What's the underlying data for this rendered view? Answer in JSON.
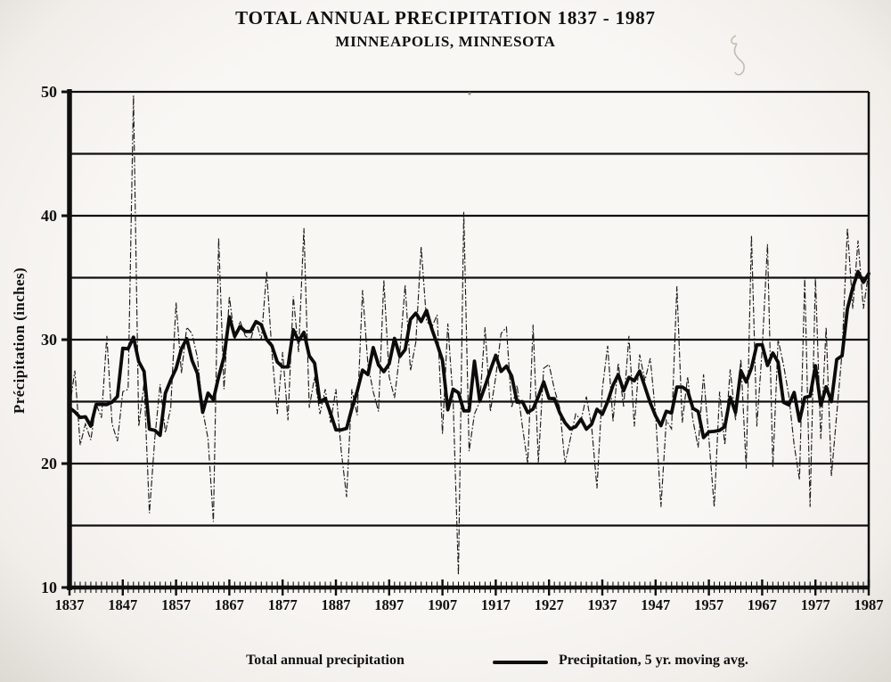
{
  "page": {
    "kind": "scanned climate chart"
  },
  "chart_data": {
    "type": "line",
    "title": "TOTAL ANNUAL PRECIPITATION 1837 - 1987",
    "subtitle": "MINNEAPOLIS, MINNESOTA",
    "ylabel": "Précipitation (inches)",
    "xlabel": "",
    "x_start": 1837,
    "x_end": 1987,
    "ylim": [
      10,
      50
    ],
    "y_gridlines": [
      15,
      20,
      25,
      30,
      35,
      40,
      45,
      50
    ],
    "y_labeled_ticks": [
      10,
      20,
      30,
      40,
      50
    ],
    "x_tick_labels": [
      "1837",
      "1847",
      "1857",
      "1867",
      "1877",
      "1887",
      "1897",
      "1907",
      "1917",
      "1927",
      "1937",
      "1947",
      "1957",
      "1967",
      "1977",
      "1987"
    ],
    "grid": "horizontal-only",
    "legend_position": "bottom",
    "series": [
      {
        "name": "Total annual precipitation",
        "style": "thin-dash-dot",
        "values": [
          24.5,
          27.5,
          21.5,
          23.2,
          21.9,
          24.8,
          23.7,
          30.3,
          23.2,
          21.8,
          25.8,
          26.0,
          49.7,
          23.0,
          26.5,
          16.0,
          22.0,
          26.4,
          22.5,
          24.5,
          33.0,
          27.3,
          31.0,
          30.5,
          28.6,
          24.3,
          22.0,
          15.3,
          38.2,
          26.0,
          33.5,
          30.0,
          31.5,
          30.3,
          30.0,
          31.5,
          30.0,
          35.5,
          29.0,
          24.0,
          29.0,
          23.5,
          33.5,
          29.0,
          39.0,
          24.5,
          27.0,
          24.0,
          26.0,
          23.3,
          26.0,
          21.0,
          17.3,
          26.0,
          23.9,
          34.0,
          28.0,
          25.8,
          24.2,
          34.8,
          27.0,
          25.3,
          29.0,
          34.4,
          27.5,
          29.8,
          37.5,
          31.5,
          31.0,
          32.0,
          22.4,
          31.3,
          25.0,
          11.0,
          40.3,
          21.0,
          24.0,
          25.0,
          31.0,
          24.2,
          27.0,
          30.5,
          31.0,
          24.5,
          26.3,
          23.0,
          20.0,
          31.2,
          20.1,
          27.7,
          28.0,
          26.0,
          24.5,
          20.0,
          22.0,
          24.0,
          23.5,
          25.4,
          23.0,
          18.0,
          26.0,
          29.5,
          23.4,
          28.1,
          24.6,
          30.3,
          23.0,
          28.8,
          26.7,
          28.5,
          24.0,
          16.5,
          23.5,
          22.8,
          34.3,
          23.3,
          27.0,
          23.5,
          21.3,
          27.2,
          22.0,
          16.5,
          25.8,
          21.5,
          27.6,
          23.5,
          28.4,
          19.6,
          38.4,
          23.0,
          29.2,
          37.7,
          19.7,
          30.0,
          28.0,
          25.5,
          21.5,
          18.7,
          35.0,
          16.5,
          35.0,
          22.0,
          31.0,
          19.0,
          24.0,
          29.0,
          39.0,
          32.5,
          38.0,
          32.5,
          35.5
        ]
      },
      {
        "name": "Precipitation, 5 yr. moving avg.",
        "style": "thick-solid",
        "derived": "centered 5-year moving average of the annual series"
      }
    ]
  },
  "legend": {
    "annual_label": "Total annual precipitation",
    "avg_label": "Precipitation, 5 yr. moving avg."
  },
  "colors": {
    "ink": "#0f0f0f",
    "paper": "#f7f5f1",
    "artifact": "#c3bcb0"
  }
}
